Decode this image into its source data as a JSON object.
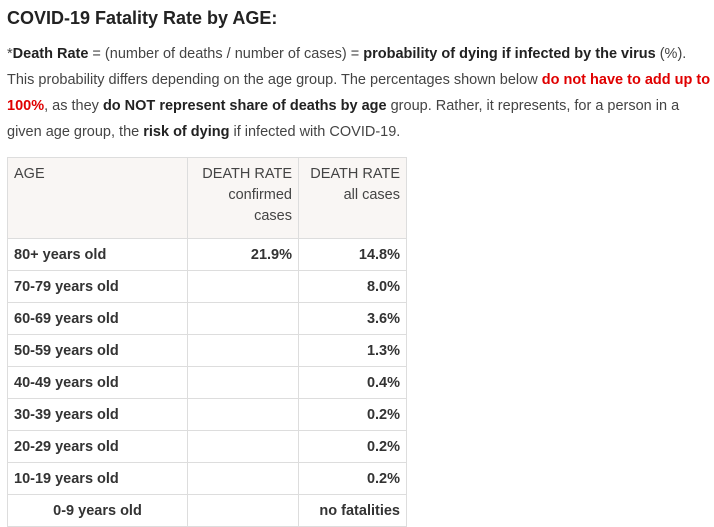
{
  "title": "COVID-19 Fatality Rate by AGE:",
  "intro": {
    "p1_star": "*",
    "p1_death_rate": "Death Rate",
    "p1_text1": " = (number of deaths / number of cases) = ",
    "p1_bold": "probability of dying if infected by the virus",
    "p1_text2": " (%). This probability differs depending on the age group. The percentages shown below ",
    "p1_red": "do not have to add up to 100%",
    "p1_text3": ", as they ",
    "p1_bold2": "do NOT represent share of deaths by age",
    "p1_text4": " group. Rather, it represents, for a person in a given age group, the ",
    "p1_bold3": "risk of dying",
    "p1_text5": " if infected with COVID-19."
  },
  "table": {
    "headers": {
      "age": "AGE",
      "confirmed_line1": "DEATH RATE",
      "confirmed_line2": "confirmed",
      "confirmed_line3": "cases",
      "all_line1": "DEATH RATE",
      "all_line2": "all cases"
    },
    "rows": [
      {
        "age": "80+ years old",
        "confirmed": "21.9%",
        "all": "14.8%"
      },
      {
        "age": "70-79 years old",
        "confirmed": "",
        "all": "8.0%"
      },
      {
        "age": "60-69 years old",
        "confirmed": "",
        "all": "3.6%"
      },
      {
        "age": "50-59 years old",
        "confirmed": "",
        "all": "1.3%"
      },
      {
        "age": "40-49 years old",
        "confirmed": "",
        "all": "0.4%"
      },
      {
        "age": "30-39 years old",
        "confirmed": "",
        "all": "0.2%"
      },
      {
        "age": "20-29 years old",
        "confirmed": "",
        "all": "0.2%"
      },
      {
        "age": "10-19 years old",
        "confirmed": "",
        "all": "0.2%"
      },
      {
        "age": "0-9 years old",
        "confirmed": "",
        "all": "no fatalities"
      }
    ]
  }
}
